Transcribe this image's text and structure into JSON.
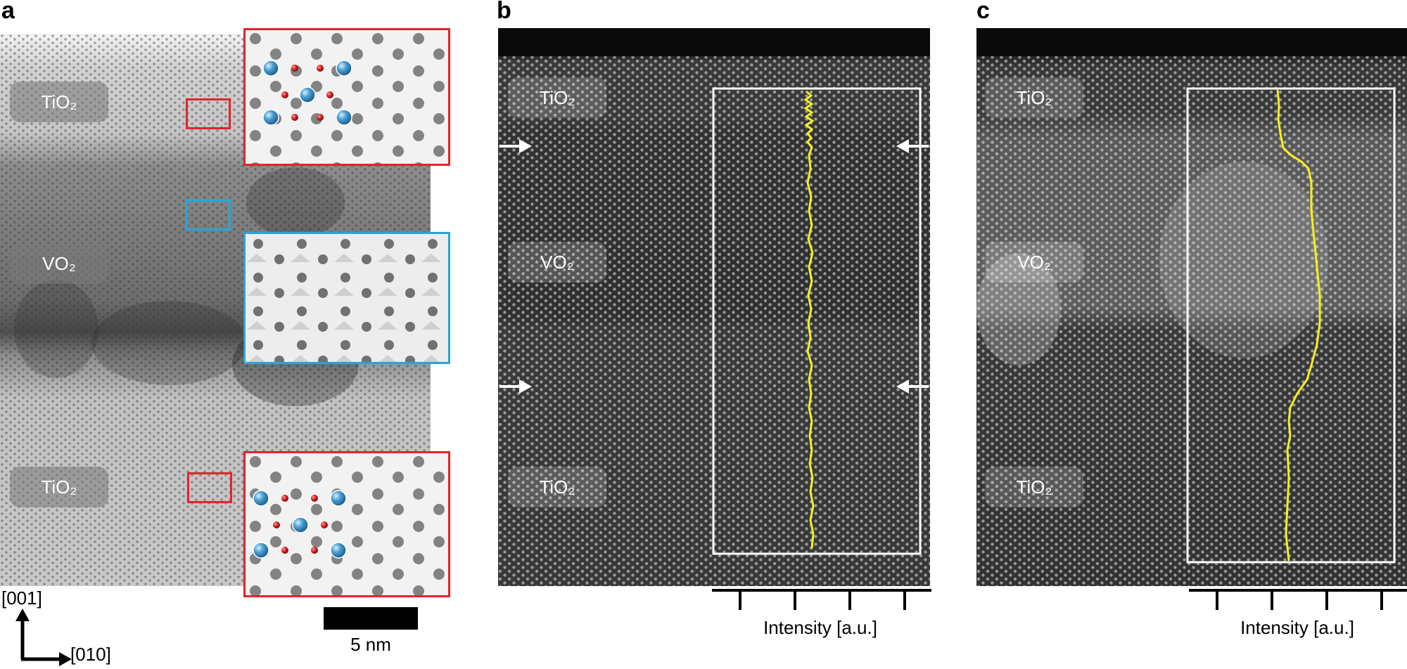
{
  "panels": {
    "a": {
      "letter": "a",
      "labels": {
        "top": "TiO₂",
        "middle": "VO₂",
        "bottom": "TiO₂"
      }
    },
    "b": {
      "letter": "b",
      "labels": {
        "top": "TiO₂",
        "middle": "VO₂",
        "bottom": "TiO₂"
      },
      "axis_label": "Intensity [a.u.]"
    },
    "c": {
      "letter": "c",
      "labels": {
        "top": "TiO₂",
        "middle": "VO₂",
        "bottom": "TiO₂"
      },
      "axis_label": "Intensity [a.u.]"
    }
  },
  "orientation": {
    "vertical": "[001]",
    "horizontal": "[010]"
  },
  "scalebar": {
    "label": "5 nm"
  },
  "colors": {
    "red_box": "#e3242b",
    "blue_box": "#2aa4d8",
    "profile": "#f5f01a",
    "ti_atom": "#4a9fd4",
    "o_atom": "#d41f1f"
  }
}
